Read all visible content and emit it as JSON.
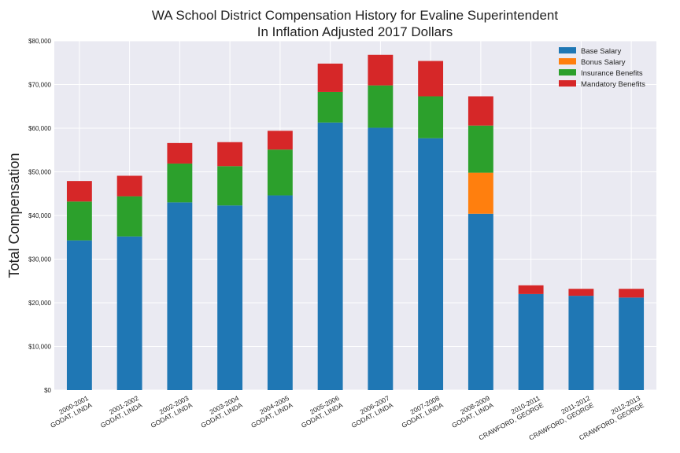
{
  "chart_data": {
    "type": "bar",
    "stacked": true,
    "title": "WA School District Compensation History for Evaline Superintendent",
    "subtitle": "In Inflation Adjusted 2017 Dollars",
    "ylabel": "Total Compensation",
    "xlabel": "",
    "ylim": [
      0,
      80000
    ],
    "yticks": [
      "$0",
      "$10,000",
      "$20,000",
      "$30,000",
      "$40,000",
      "$50,000",
      "$60,000",
      "$70,000",
      "$80,000"
    ],
    "grid": true,
    "legend_position": "top-right",
    "categories": [
      {
        "year": "2000-2001",
        "name": "GODAT, LINDA"
      },
      {
        "year": "2001-2002",
        "name": "GODAT, LINDA"
      },
      {
        "year": "2002-2003",
        "name": "GODAT, LINDA"
      },
      {
        "year": "2003-2004",
        "name": "GODAT, LINDA"
      },
      {
        "year": "2004-2005",
        "name": "GODAT, LINDA"
      },
      {
        "year": "2005-2006",
        "name": "GODAT, LINDA"
      },
      {
        "year": "2006-2007",
        "name": "GODAT, LINDA"
      },
      {
        "year": "2007-2008",
        "name": "GODAT, LINDA"
      },
      {
        "year": "2008-2009",
        "name": "GODAT, LINDA"
      },
      {
        "year": "2010-2011",
        "name": "CRAWFORD, GEORGE"
      },
      {
        "year": "2011-2012",
        "name": "CRAWFORD, GEORGE"
      },
      {
        "year": "2012-2013",
        "name": "CRAWFORD, GEORGE"
      }
    ],
    "series": [
      {
        "name": "Base Salary",
        "color": "#1f77b4",
        "values": [
          34300,
          35200,
          43000,
          42300,
          44600,
          61300,
          60100,
          57700,
          40400,
          22000,
          21600,
          21200
        ]
      },
      {
        "name": "Bonus Salary",
        "color": "#ff7f0e",
        "values": [
          0,
          0,
          0,
          0,
          0,
          0,
          0,
          0,
          9400,
          0,
          0,
          0
        ]
      },
      {
        "name": "Insurance Benefits",
        "color": "#2ca02c",
        "values": [
          8900,
          9200,
          8900,
          9000,
          10500,
          7000,
          9700,
          9600,
          10800,
          0,
          0,
          0
        ]
      },
      {
        "name": "Mandatory Benefits",
        "color": "#d62728",
        "values": [
          4700,
          4700,
          4700,
          5500,
          4300,
          6500,
          7000,
          8100,
          6700,
          2000,
          1600,
          2000
        ]
      }
    ]
  }
}
